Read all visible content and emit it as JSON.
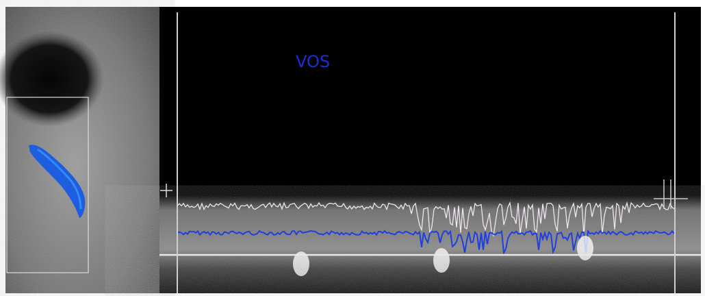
{
  "label": "VOS"
}
